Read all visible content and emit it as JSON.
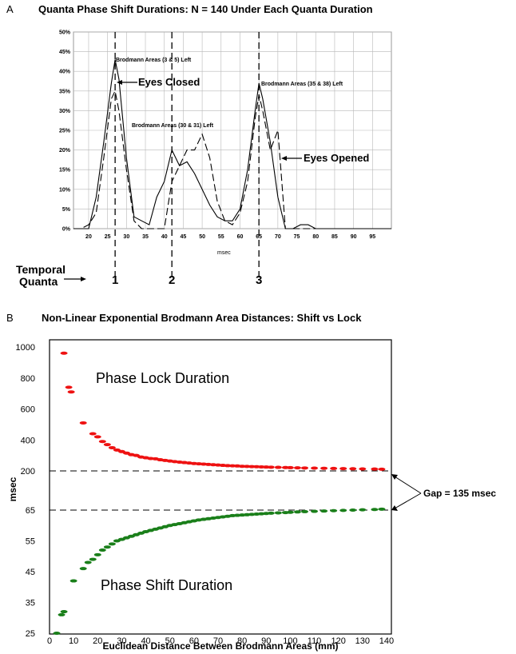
{
  "panel_a": {
    "panel_letter": "A",
    "title": "Quanta Phase Shift Durations: N = 140  Under Each Quanta Duration",
    "xlabel": "msec",
    "annotations": {
      "left_peak": "Brodmann Areas (3 & 5) Left",
      "middle_peak": "Brodmann Areas (30 & 31) Left",
      "right_peak": "Brodmann Areas (35 & 38) Left",
      "eyes_closed": "Eyes Closed",
      "eyes_opened": "Eyes Opened"
    },
    "quanta_label_line1": "Temporal",
    "quanta_label_line2": "Quanta",
    "quanta_numbers": [
      "1",
      "2",
      "3"
    ]
  },
  "panel_b": {
    "panel_letter": "B",
    "title": "Non-Linear Exponential Brodmann Area Distances: Shift vs Lock",
    "xlabel": "Euclidean Distance Between Brodmann Areas (mm)",
    "ylabel": "msec",
    "lock_label": "Phase Lock Duration",
    "shift_label": "Phase Shift Duration",
    "gap_label": "Gap = 135 msec"
  },
  "chart_data": [
    {
      "type": "line",
      "title": "Quanta Phase Shift Durations: N = 140  Under Each Quanta Duration",
      "xlabel": "msec",
      "ylabel": "",
      "x_ticks": [
        "20",
        "25",
        "30",
        "35",
        "40",
        "45",
        "50",
        "55",
        "60",
        "65",
        "70",
        "75",
        "80",
        "85",
        "90",
        "95"
      ],
      "y_ticks": [
        "0%",
        "5%",
        "10%",
        "15%",
        "20%",
        "25%",
        "30%",
        "35%",
        "40%",
        "45%",
        "50%"
      ],
      "xlim": [
        16,
        100
      ],
      "ylim": [
        0,
        50
      ],
      "grid": true,
      "series": [
        {
          "style": "solid",
          "x": [
            16,
            18,
            20,
            22,
            24,
            26,
            27,
            28,
            30,
            32,
            34,
            36,
            38,
            40,
            42,
            44,
            46,
            48,
            50,
            52,
            54,
            56,
            58,
            60,
            62,
            64,
            65,
            66,
            68,
            70,
            72,
            74,
            76,
            78,
            80,
            100
          ],
          "y": [
            0,
            0,
            0,
            8,
            22,
            37,
            43,
            38,
            18,
            3,
            2,
            1,
            8,
            12,
            20,
            16,
            17,
            14,
            10,
            6,
            3,
            2,
            2,
            5,
            15,
            30,
            37,
            33,
            22,
            8,
            0,
            0,
            1,
            1,
            0,
            0
          ]
        },
        {
          "style": "dashed",
          "x": [
            16,
            18,
            20,
            22,
            24,
            26,
            27,
            28,
            30,
            32,
            34,
            36,
            38,
            40,
            42,
            44,
            46,
            48,
            50,
            52,
            54,
            56,
            58,
            60,
            62,
            64,
            65,
            66,
            68,
            70,
            72,
            74,
            76,
            100
          ],
          "y": [
            0,
            0,
            1,
            4,
            18,
            33,
            35,
            30,
            15,
            2,
            0,
            0,
            0,
            0,
            12,
            16,
            20,
            20,
            24,
            18,
            7,
            2,
            1,
            4,
            12,
            28,
            34,
            30,
            20,
            25,
            0,
            0,
            0,
            0
          ]
        }
      ],
      "vertical_markers": [
        27,
        42,
        65
      ]
    },
    {
      "type": "scatter",
      "title": "Non-Linear Exponential Brodmann Area Distances: Shift vs Lock",
      "xlabel": "Euclidean Distance Between Brodmann Areas (mm)",
      "ylabel": "msec",
      "x_ticks": [
        0,
        10,
        20,
        30,
        40,
        50,
        60,
        70,
        80,
        90,
        100,
        110,
        120,
        130,
        140
      ],
      "y_ticks": [
        "25",
        "35",
        "45",
        "55",
        "65",
        "200",
        "400",
        "600",
        "800",
        "1000"
      ],
      "xlim": [
        0,
        142
      ],
      "grid": false,
      "reference_lines_msec": [
        200,
        65
      ],
      "series": [
        {
          "name": "Phase Lock Duration",
          "color": "#ee1111",
          "x": [
            6,
            8,
            9,
            14,
            18,
            20,
            22,
            24,
            26,
            28,
            30,
            32,
            34,
            36,
            38,
            40,
            42,
            44,
            46,
            48,
            50,
            52,
            54,
            56,
            58,
            60,
            62,
            64,
            66,
            68,
            70,
            72,
            74,
            76,
            78,
            80,
            82,
            84,
            86,
            88,
            90,
            92,
            95,
            98,
            100,
            103,
            106,
            110,
            114,
            118,
            122,
            126,
            130,
            135,
            138
          ],
          "y": [
            960,
            740,
            710,
            510,
            440,
            420,
            390,
            370,
            350,
            335,
            325,
            315,
            305,
            300,
            290,
            285,
            280,
            278,
            272,
            268,
            264,
            260,
            257,
            254,
            251,
            248,
            246,
            244,
            242,
            240,
            238,
            236,
            234,
            233,
            232,
            230,
            229,
            228,
            227,
            226,
            225,
            224,
            223,
            222,
            221,
            220,
            219,
            218,
            217,
            216,
            215,
            214,
            213,
            212,
            211
          ]
        },
        {
          "name": "Phase Shift Duration",
          "color": "#1a7f1a",
          "x": [
            3,
            5,
            6,
            10,
            14,
            16,
            18,
            20,
            22,
            24,
            26,
            28,
            30,
            32,
            34,
            36,
            38,
            40,
            42,
            44,
            46,
            48,
            50,
            52,
            54,
            56,
            58,
            60,
            62,
            64,
            66,
            68,
            70,
            72,
            74,
            76,
            78,
            80,
            82,
            84,
            86,
            88,
            90,
            92,
            95,
            98,
            100,
            103,
            106,
            110,
            114,
            118,
            122,
            126,
            130,
            135,
            138
          ],
          "y": [
            25,
            31,
            32,
            42,
            46,
            48,
            49,
            50.5,
            52,
            53,
            54,
            55,
            55.5,
            56,
            56.5,
            57,
            57.5,
            58,
            58.4,
            58.8,
            59.2,
            59.6,
            60,
            60.3,
            60.6,
            60.9,
            61.2,
            61.5,
            61.8,
            62,
            62.2,
            62.4,
            62.6,
            62.8,
            63,
            63.2,
            63.3,
            63.4,
            63.5,
            63.6,
            63.7,
            63.8,
            63.9,
            64,
            64.1,
            64.2,
            64.3,
            64.4,
            64.5,
            64.6,
            64.7,
            64.8,
            64.9,
            65,
            65.1,
            65.2,
            65.3
          ]
        }
      ]
    }
  ]
}
